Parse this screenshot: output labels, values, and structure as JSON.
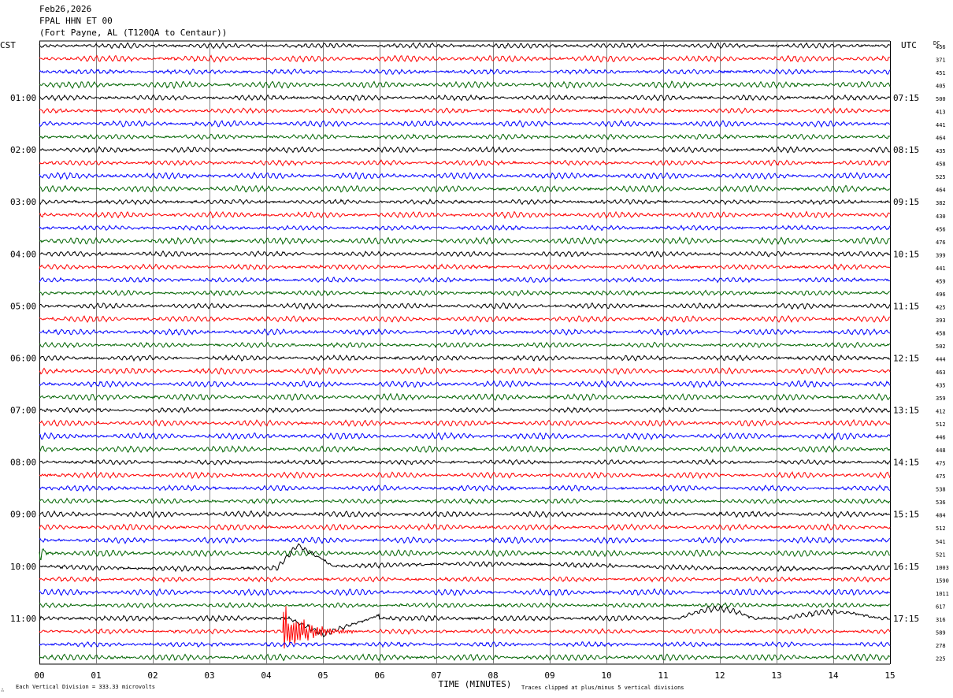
{
  "header": {
    "date": "Feb26,2026",
    "station": "FPAL HHN ET 00",
    "location": "(Fort Payne, AL (T120QA to Centaur))"
  },
  "left_timezone": "CST",
  "right_timezone": "UTC",
  "dc_label": "DC",
  "footer": {
    "scale_note": "Each Vertical Division =  333.33 microvolts",
    "xlabel": "TIME (MINUTES)",
    "clip_note": "Traces clipped at plus/minus 5 vertical divisions"
  },
  "colors": {
    "black": "#000000",
    "red": "#ff0000",
    "blue": "#0000ff",
    "green": "#006400",
    "grid": "#808080"
  },
  "chart_data": {
    "type": "line",
    "subtype": "helicorder",
    "xlim": [
      0,
      15
    ],
    "x_ticks": [
      "00",
      "01",
      "02",
      "03",
      "04",
      "05",
      "06",
      "07",
      "08",
      "09",
      "10",
      "11",
      "12",
      "13",
      "14",
      "15"
    ],
    "traces_per_hour": 4,
    "trace_color_cycle": [
      "black",
      "red",
      "blue",
      "green"
    ],
    "left_hour_labels": [
      "01:00",
      "02:00",
      "03:00",
      "04:00",
      "05:00",
      "06:00",
      "07:00",
      "08:00",
      "09:00",
      "10:00",
      "11:00"
    ],
    "right_hour_labels": [
      "07:15",
      "08:15",
      "09:15",
      "10:15",
      "11:15",
      "12:15",
      "13:15",
      "14:15",
      "15:15",
      "16:15",
      "17:15"
    ],
    "dc_offsets": [
      456,
      371,
      451,
      405,
      500,
      413,
      441,
      464,
      435,
      458,
      525,
      464,
      382,
      430,
      456,
      476,
      399,
      441,
      459,
      496,
      425,
      393,
      458,
      502,
      444,
      463,
      435,
      359,
      412,
      512,
      446,
      448,
      475,
      475,
      538,
      536,
      484,
      512,
      541,
      521,
      1003,
      1590,
      1011,
      617,
      316,
      589,
      278,
      225
    ],
    "events": [
      {
        "trace": 40,
        "start_min": 4.4,
        "peak_min": 4.55,
        "description": ""
      },
      {
        "trace": 45,
        "start_min": 4.3,
        "end_min": 5.5
      }
    ],
    "grid": true
  }
}
